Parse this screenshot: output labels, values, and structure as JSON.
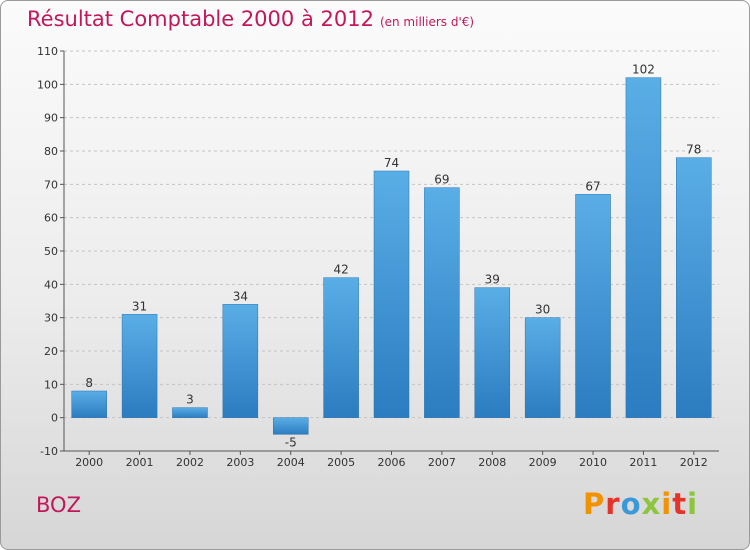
{
  "header": {
    "title": "Résultat Comptable 2000 à 2012",
    "subtitle": "(en milliers d'€)"
  },
  "footer": {
    "commune": "BOZ",
    "logo": "Proxiti"
  },
  "chart_data": {
    "type": "bar",
    "title": "Résultat Comptable 2000 à 2012",
    "subtitle": "(en milliers d'€)",
    "xlabel": "",
    "ylabel": "",
    "categories": [
      "2000",
      "2001",
      "2002",
      "2003",
      "2004",
      "2005",
      "2006",
      "2007",
      "2008",
      "2009",
      "2010",
      "2011",
      "2012"
    ],
    "values": [
      8,
      31,
      3,
      34,
      -5,
      42,
      74,
      69,
      39,
      30,
      67,
      102,
      78
    ],
    "ylim": [
      -10,
      110
    ],
    "yticks": [
      -10,
      0,
      10,
      20,
      30,
      40,
      50,
      60,
      70,
      80,
      90,
      100,
      110
    ],
    "grid": true,
    "bar_color": "#3d95d4"
  }
}
